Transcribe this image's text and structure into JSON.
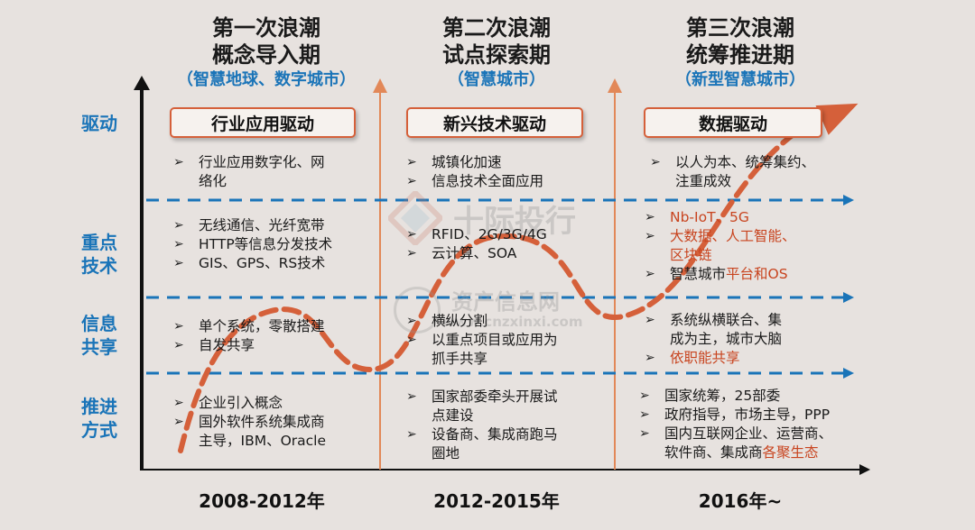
{
  "waves": [
    {
      "title1": "第一次浪潮",
      "title2": "概念导入期",
      "subtitle": "（智慧地球、数字城市）",
      "driver": "行业应用驱动",
      "period": "2008-2012年"
    },
    {
      "title1": "第二次浪潮",
      "title2": "试点探索期",
      "subtitle": "（智慧城市）",
      "driver": "新兴技术驱动",
      "period": "2012-2015年"
    },
    {
      "title1": "第三次浪潮",
      "title2": "统筹推进期",
      "subtitle": "（新型智慧城市）",
      "driver": "数据驱动",
      "period": "2016年~"
    }
  ],
  "rows": {
    "drive": "驱动",
    "tech": [
      "重点",
      "技术"
    ],
    "share": [
      "信息",
      "共享"
    ],
    "method": [
      "推进",
      "方式"
    ]
  },
  "cells": {
    "drive": [
      [
        "行业应用数字化、网",
        "络化"
      ],
      [
        "城镇化加速",
        "信息技术全面应用"
      ],
      [
        "以人为本、统筹集约、",
        "注重成效"
      ]
    ],
    "tech": [
      [
        "无线通信、光纤宽带",
        "HTTP等信息分发技术",
        "GIS、GPS、RS技术"
      ],
      [
        "RFID、2G/3G/4G",
        "云计算、SOA"
      ],
      [
        "Nb-IoT、5G",
        "大数据、人工智能、",
        "区块链",
        "智慧城市",
        "平台和OS"
      ]
    ],
    "share": [
      [
        "单个系统，零散搭建",
        "自发共享"
      ],
      [
        "横纵分割",
        "以重点项目或应用为",
        "抓手共享"
      ],
      [
        "系统纵横联合、集",
        "成为主，城市大脑",
        "依职能共享"
      ]
    ],
    "method": [
      [
        "企业引入概念",
        "国外软件系统集成商",
        "主导，IBM、Oracle"
      ],
      [
        "国家部委牵头开展试",
        "点建设",
        "设备商、集成商跑马",
        "圈地"
      ],
      [
        "国家统筹，25部委",
        "政府指导，市场主导，PPP",
        "国内互联网企业、运营商、",
        "软件商、集成商",
        "各聚生态"
      ]
    ]
  },
  "watermark": {
    "line1": "十际投行",
    "line2": "资产信息网",
    "line3": "www.cnzxinxi.com"
  },
  "colors": {
    "accent_blue": "#1a74b8",
    "accent_orange": "#d5603a",
    "highlight_red": "#c8441f"
  }
}
